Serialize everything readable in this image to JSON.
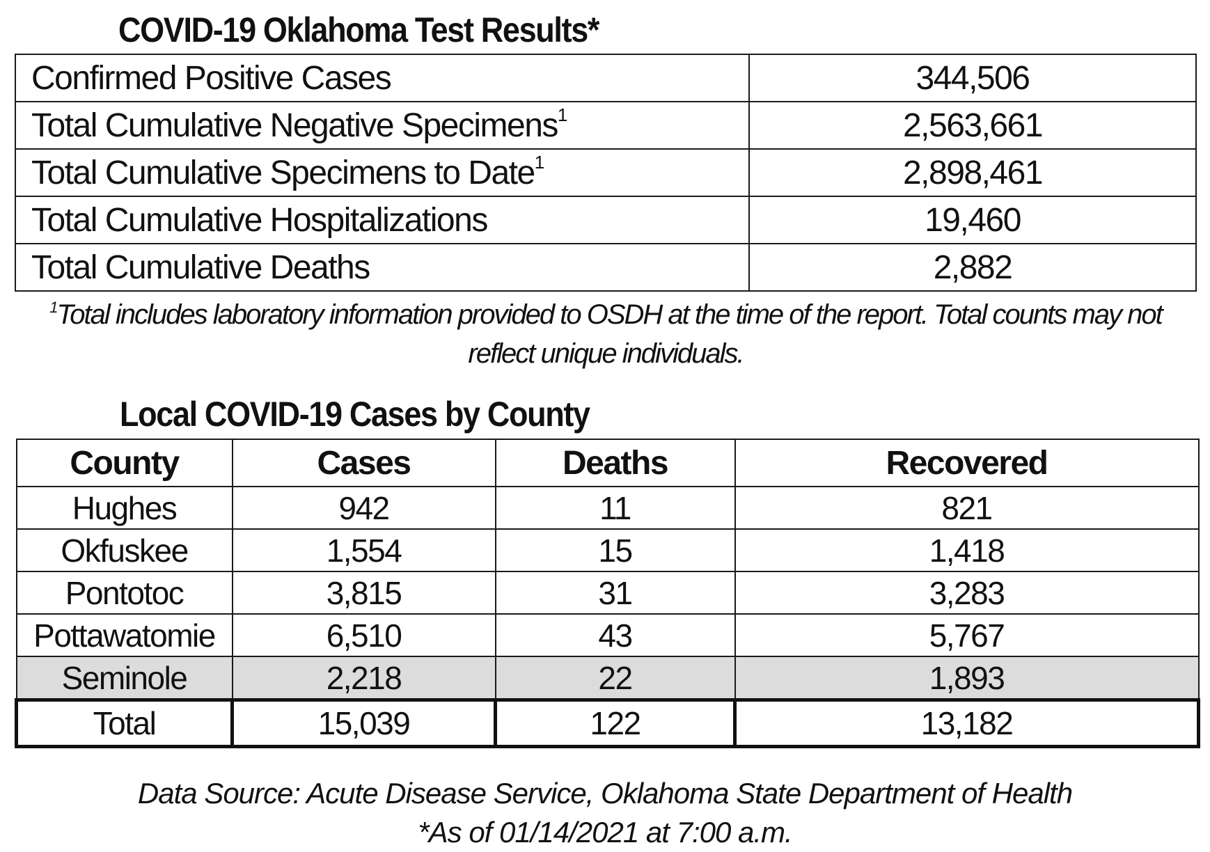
{
  "results": {
    "title": "COVID-19 Oklahoma Test Results*",
    "rows": [
      {
        "label": "Confirmed Positive Cases",
        "sup": "",
        "value": "344,506"
      },
      {
        "label": "Total Cumulative Negative Specimens",
        "sup": "1",
        "value": "2,563,661"
      },
      {
        "label": "Total Cumulative Specimens to Date",
        "sup": "1",
        "value": "2,898,461"
      },
      {
        "label": "Total Cumulative Hospitalizations",
        "sup": "",
        "value": "19,460"
      },
      {
        "label": "Total Cumulative Deaths",
        "sup": "",
        "value": "2,882"
      }
    ],
    "footnote_marker": "1",
    "footnote": "Total includes laboratory information provided to OSDH at the time of the report. Total counts may not reflect unique individuals."
  },
  "county": {
    "title": "Local COVID-19 Cases by County",
    "headers": [
      "County",
      "Cases",
      "Deaths",
      "Recovered"
    ],
    "rows": [
      [
        "Hughes",
        "942",
        "11",
        "821"
      ],
      [
        "Okfuskee",
        "1,554",
        "15",
        "1,418"
      ],
      [
        "Pontotoc",
        "3,815",
        "31",
        "3,283"
      ],
      [
        "Pottawatomie",
        "6,510",
        "43",
        "5,767"
      ],
      [
        "Seminole",
        "2,218",
        "22",
        "1,893"
      ]
    ],
    "total": [
      "Total",
      "15,039",
      "122",
      "13,182"
    ]
  },
  "source": {
    "line1": "Data Source: Acute Disease Service, Oklahoma State Department of Health",
    "line2": "*As of 01/14/2021 at 7:00 a.m."
  },
  "colors": {
    "shaded_row": "#dcdcdc",
    "border": "#1a1a1a"
  }
}
